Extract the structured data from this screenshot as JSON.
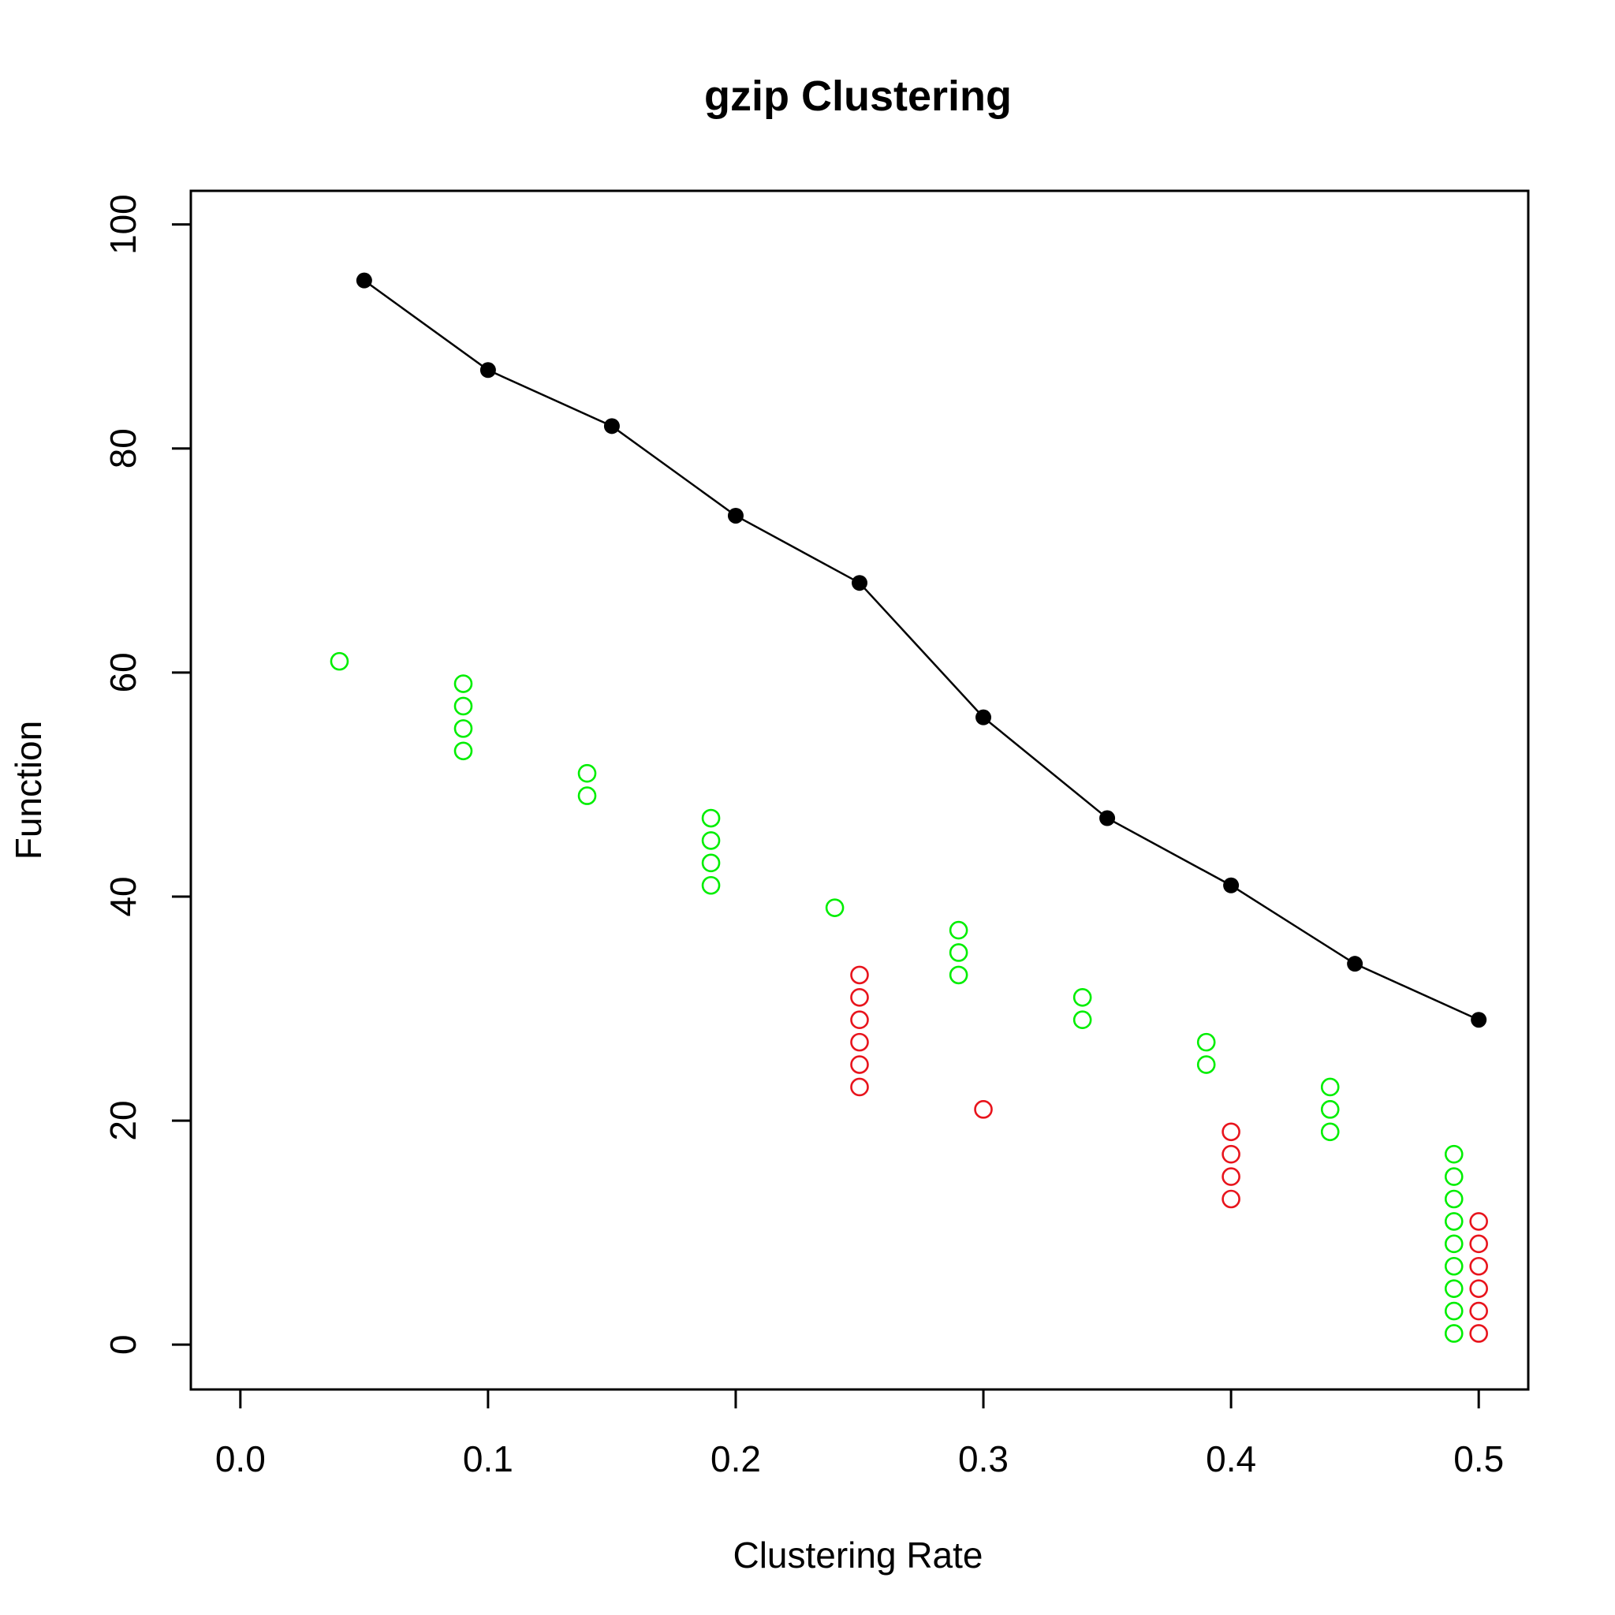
{
  "chart_data": {
    "type": "scatter",
    "title": "gzip Clustering",
    "xlabel": "Clustering Rate",
    "ylabel": "Function",
    "xlim": [
      -0.02,
      0.52
    ],
    "ylim": [
      -4,
      103
    ],
    "x_ticks": [
      0.0,
      0.1,
      0.2,
      0.3,
      0.4,
      0.5
    ],
    "x_tick_labels": [
      "0.0",
      "0.1",
      "0.2",
      "0.3",
      "0.4",
      "0.5"
    ],
    "y_ticks": [
      0,
      20,
      40,
      60,
      80,
      100
    ],
    "y_tick_labels": [
      "0",
      "20",
      "40",
      "60",
      "80",
      "100"
    ],
    "grid": false,
    "legend": "none",
    "colors": {
      "line": "#000000",
      "green": "#00ee00",
      "red": "#e8141c"
    },
    "series": [
      {
        "style": "line-filled-points",
        "color": "#000000",
        "points": [
          {
            "x": 0.05,
            "y": 95
          },
          {
            "x": 0.1,
            "y": 87
          },
          {
            "x": 0.15,
            "y": 82
          },
          {
            "x": 0.2,
            "y": 74
          },
          {
            "x": 0.25,
            "y": 68
          },
          {
            "x": 0.3,
            "y": 56
          },
          {
            "x": 0.35,
            "y": 47
          },
          {
            "x": 0.4,
            "y": 41
          },
          {
            "x": 0.45,
            "y": 34
          },
          {
            "x": 0.5,
            "y": 29
          }
        ]
      },
      {
        "style": "open-circles",
        "color": "#00ee00",
        "points": [
          {
            "x": 0.04,
            "y": 61
          },
          {
            "x": 0.09,
            "y": 59
          },
          {
            "x": 0.09,
            "y": 57
          },
          {
            "x": 0.09,
            "y": 55
          },
          {
            "x": 0.09,
            "y": 53
          },
          {
            "x": 0.14,
            "y": 51
          },
          {
            "x": 0.14,
            "y": 49
          },
          {
            "x": 0.19,
            "y": 47
          },
          {
            "x": 0.19,
            "y": 45
          },
          {
            "x": 0.19,
            "y": 43
          },
          {
            "x": 0.19,
            "y": 41
          },
          {
            "x": 0.24,
            "y": 39
          },
          {
            "x": 0.29,
            "y": 37
          },
          {
            "x": 0.29,
            "y": 35
          },
          {
            "x": 0.29,
            "y": 33
          },
          {
            "x": 0.34,
            "y": 31
          },
          {
            "x": 0.34,
            "y": 29
          },
          {
            "x": 0.39,
            "y": 27
          },
          {
            "x": 0.39,
            "y": 25
          },
          {
            "x": 0.44,
            "y": 23
          },
          {
            "x": 0.44,
            "y": 21
          },
          {
            "x": 0.44,
            "y": 19
          },
          {
            "x": 0.49,
            "y": 17
          },
          {
            "x": 0.49,
            "y": 15
          },
          {
            "x": 0.49,
            "y": 13
          },
          {
            "x": 0.49,
            "y": 11
          },
          {
            "x": 0.49,
            "y": 9
          },
          {
            "x": 0.49,
            "y": 7
          },
          {
            "x": 0.49,
            "y": 5
          },
          {
            "x": 0.49,
            "y": 3
          },
          {
            "x": 0.49,
            "y": 1
          }
        ]
      },
      {
        "style": "open-circles",
        "color": "#e8141c",
        "points": [
          {
            "x": 0.25,
            "y": 33
          },
          {
            "x": 0.25,
            "y": 31
          },
          {
            "x": 0.25,
            "y": 29
          },
          {
            "x": 0.25,
            "y": 27
          },
          {
            "x": 0.25,
            "y": 25
          },
          {
            "x": 0.25,
            "y": 23
          },
          {
            "x": 0.3,
            "y": 21
          },
          {
            "x": 0.4,
            "y": 19
          },
          {
            "x": 0.4,
            "y": 17
          },
          {
            "x": 0.4,
            "y": 15
          },
          {
            "x": 0.4,
            "y": 13
          },
          {
            "x": 0.5,
            "y": 11
          },
          {
            "x": 0.5,
            "y": 9
          },
          {
            "x": 0.5,
            "y": 7
          },
          {
            "x": 0.5,
            "y": 5
          },
          {
            "x": 0.5,
            "y": 3
          },
          {
            "x": 0.5,
            "y": 1
          }
        ]
      }
    ]
  }
}
